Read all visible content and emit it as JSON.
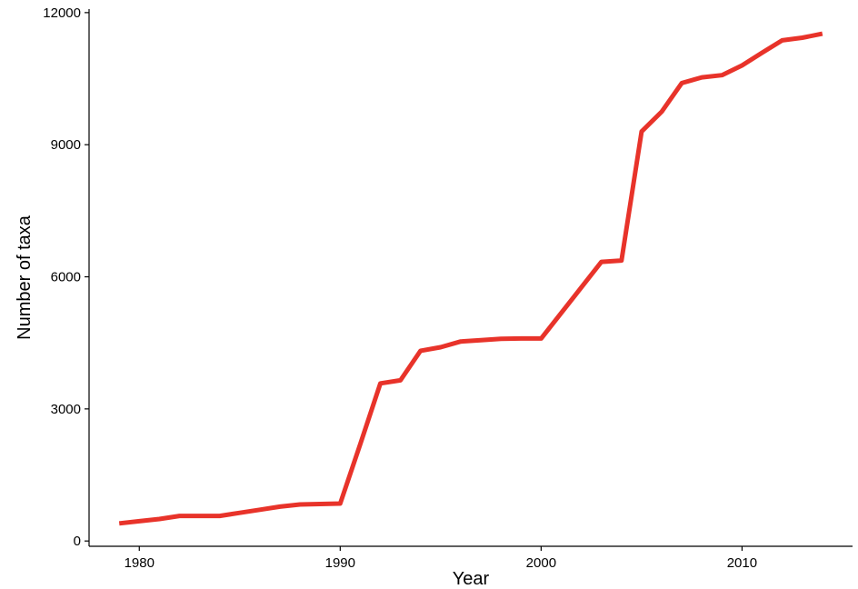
{
  "chart_data": {
    "type": "line",
    "title": "",
    "xlabel": "Year",
    "ylabel": "Number of taxa",
    "xlim": [
      1977.5,
      2015.5
    ],
    "ylim": [
      -120,
      12080
    ],
    "x_ticks": [
      1980,
      1990,
      2000,
      2010
    ],
    "x_tick_labels": [
      "1980",
      "1990",
      "2000",
      "2010"
    ],
    "y_ticks": [
      0,
      3000,
      6000,
      9000,
      12000
    ],
    "y_tick_labels": [
      "0",
      "3000",
      "6000",
      "9000",
      "12000"
    ],
    "grid": false,
    "legend": "none",
    "series": [
      {
        "color": "#e8332a",
        "x": [
          1979,
          1980,
          1981,
          1982,
          1983,
          1984,
          1985,
          1986,
          1987,
          1988,
          1989,
          1990,
          1991,
          1992,
          1993,
          1994,
          1995,
          1996,
          1997,
          1998,
          1999,
          2000,
          2001,
          2002,
          2003,
          2004,
          2005,
          2006,
          2007,
          2008,
          2009,
          2010,
          2011,
          2012,
          2013,
          2014
        ],
        "y": [
          400,
          450,
          500,
          570,
          570,
          570,
          640,
          710,
          780,
          830,
          840,
          850,
          2200,
          3580,
          3650,
          4320,
          4400,
          4530,
          4560,
          4590,
          4600,
          4600,
          5180,
          5760,
          6340,
          6370,
          9300,
          9750,
          10400,
          10530,
          10580,
          10800,
          11090,
          11370,
          11430,
          11520
        ]
      }
    ]
  }
}
